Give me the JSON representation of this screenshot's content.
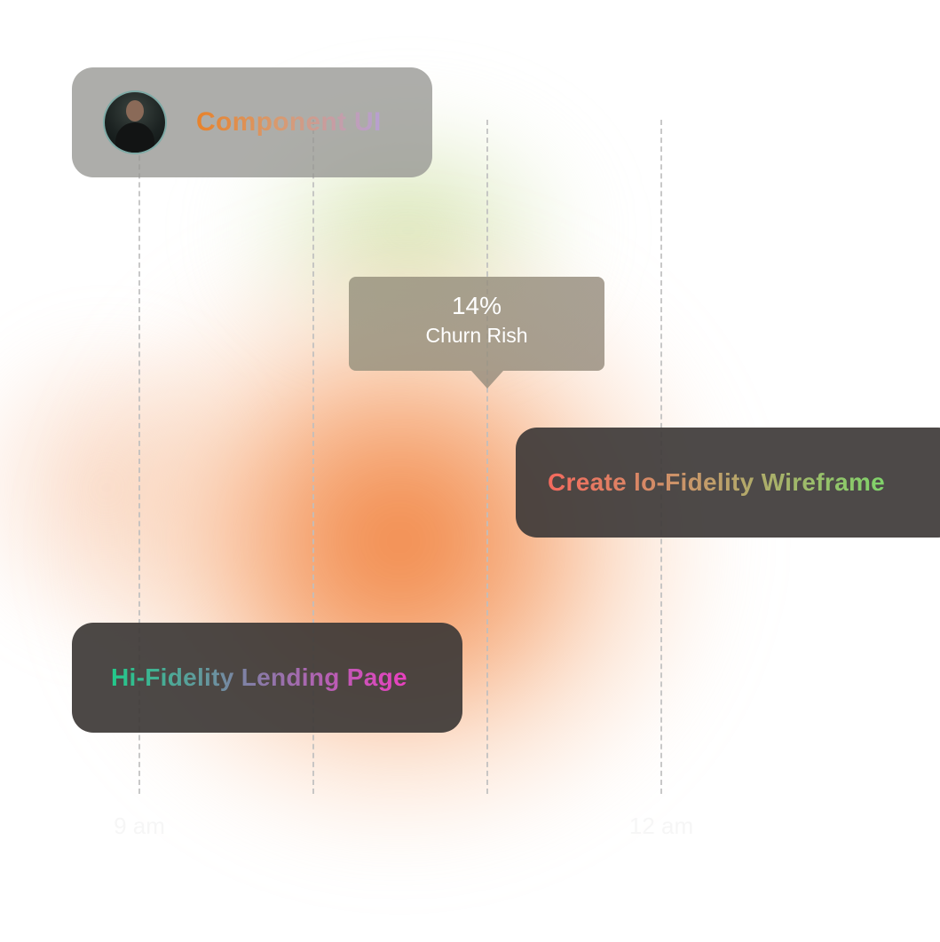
{
  "tasks": {
    "component_ui": {
      "title": "Component UI",
      "avatar": "user-avatar-photo"
    },
    "churn_tooltip": {
      "value": "14%",
      "label": "Churn Rish"
    },
    "wireframe": {
      "title": "Create lo-Fidelity Wireframe"
    },
    "landing_page": {
      "title": "Hi-Fidelity Lending Page"
    }
  },
  "timeline": {
    "labels": [
      "9 am",
      "",
      "",
      "12 am"
    ]
  },
  "colors": {
    "glow_primary": "#f07d37",
    "glow_secondary": "#c8dc96",
    "card_dark": "#3e3a38",
    "card_light": "#96968f"
  }
}
